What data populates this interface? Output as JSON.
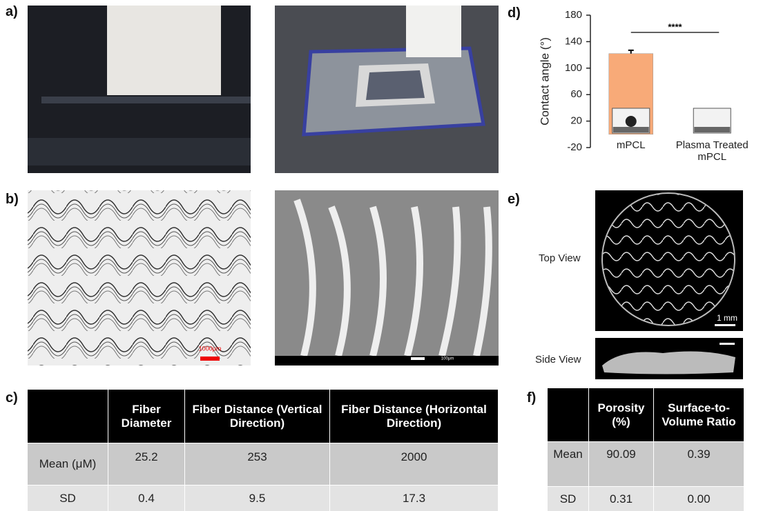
{
  "panel_labels": [
    "a)",
    "b)",
    "c)",
    "d)",
    "e)",
    "f)"
  ],
  "panel_b": {
    "scale_bar": "1000μm",
    "sem_scale": "100μm"
  },
  "panel_e": {
    "top_view": "Top View",
    "side_view": "Side View",
    "scale_bar": "1 mm"
  },
  "chart_data": {
    "type": "bar",
    "ylabel": "Contact angle (°)",
    "categories": [
      "mPCL",
      "Plasma Treated mPCL"
    ],
    "values": [
      122,
      0
    ],
    "errors": [
      5,
      null
    ],
    "color": "#f8aa78",
    "ylim": [
      -20,
      180
    ],
    "yticks": [
      -20,
      20,
      60,
      100,
      140,
      180
    ],
    "significance": "****"
  },
  "table_c": {
    "header": [
      "Fiber Diameter",
      "Fiber Distance (Vertical Direction)",
      "Fiber Distance (Horizontal Direction)"
    ],
    "rows": [
      [
        "Mean (μM)",
        "25.2",
        "253",
        "2000"
      ],
      [
        "SD",
        "0.4",
        "9.5",
        "17.3"
      ]
    ]
  },
  "table_f": {
    "header": [
      "Porosity (%)",
      "Surface-to-Volume Ratio"
    ],
    "rows": [
      [
        "Mean",
        "90.09",
        "0.39"
      ],
      [
        "SD",
        "0.31",
        "0.00"
      ]
    ]
  }
}
